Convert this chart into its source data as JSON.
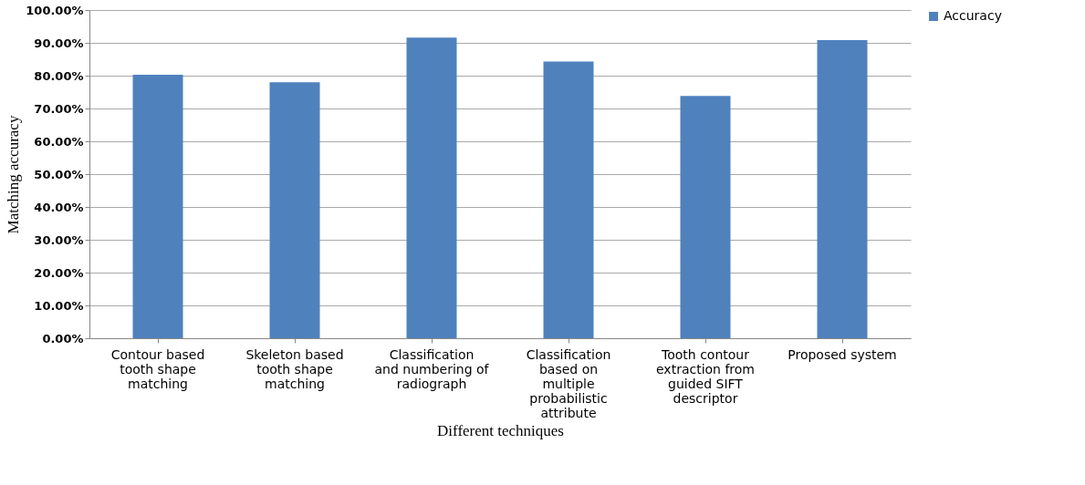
{
  "chart_data": {
    "type": "bar",
    "xlabel": "Different techniques",
    "ylabel": "Matching accuracy",
    "categories": [
      "Contour based tooth shape matching",
      "Skeleton based tooth shape matching",
      "Classification and numbering of radiograph",
      "Classification based on multiple probabilistic attribute",
      "Tooth contour extraction from guided SIFT descriptor",
      "Proposed system"
    ],
    "series": [
      {
        "name": "Accuracy",
        "color": "#4f81bd",
        "values": [
          80.3,
          78.0,
          91.6,
          84.3,
          73.8,
          90.8
        ]
      }
    ],
    "ylim": [
      0,
      100
    ],
    "yticks": [
      {
        "value": 0,
        "label": "0.00%"
      },
      {
        "value": 10,
        "label": "10.00%"
      },
      {
        "value": 20,
        "label": "20.00%"
      },
      {
        "value": 30,
        "label": "30.00%"
      },
      {
        "value": 40,
        "label": "40.00%"
      },
      {
        "value": 50,
        "label": "50.00%"
      },
      {
        "value": 60,
        "label": "60.00%"
      },
      {
        "value": 70,
        "label": "70.00%"
      },
      {
        "value": 80,
        "label": "80.00%"
      },
      {
        "value": 90,
        "label": "90.00%"
      },
      {
        "value": 100,
        "label": "100.00%"
      }
    ],
    "grid": "y",
    "legend": "right"
  }
}
